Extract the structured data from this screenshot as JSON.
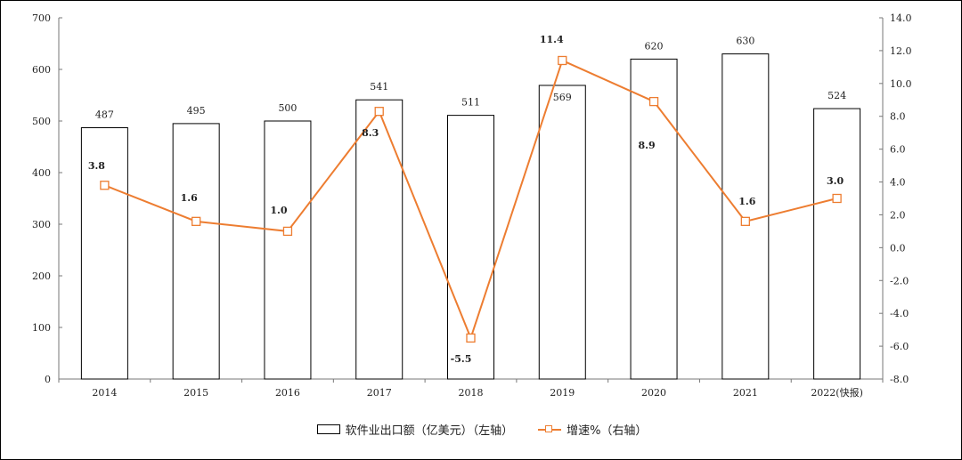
{
  "chart_data": {
    "type": "bar+line",
    "categories": [
      "2014",
      "2015",
      "2016",
      "2017",
      "2018",
      "2019",
      "2020",
      "2021",
      "2022(快报)"
    ],
    "series": [
      {
        "name": "软件业出口额（亿美元）（左轴）",
        "type": "bar",
        "axis": "left",
        "values": [
          487,
          495,
          500,
          541,
          511,
          569,
          620,
          630,
          524
        ],
        "color": "#FFFFFF",
        "edge": "#000000"
      },
      {
        "name": "增速%（右轴）",
        "type": "line",
        "axis": "right",
        "values": [
          3.8,
          1.6,
          1.0,
          8.3,
          -5.5,
          11.4,
          8.9,
          1.6,
          3.0
        ],
        "labels": [
          "3.8",
          "1.6",
          "1.0",
          "8.3",
          "-5.5",
          "11.4",
          "8.9",
          "1.6",
          "3.0"
        ],
        "color": "#ED7D31",
        "marker": "open-square"
      }
    ],
    "bar_labels": [
      "487",
      "495",
      "500",
      "541",
      "511",
      "569",
      "620",
      "630",
      "524"
    ],
    "y_left": {
      "range": [
        0,
        700
      ],
      "ticks": [
        "0",
        "100",
        "200",
        "300",
        "400",
        "500",
        "600",
        "700"
      ]
    },
    "y_right": {
      "range": [
        -8,
        14
      ],
      "ticks": [
        "-8.0",
        "-6.0",
        "-4.0",
        "-2.0",
        "0.0",
        "2.0",
        "4.0",
        "6.0",
        "8.0",
        "10.0",
        "12.0",
        "14.0"
      ]
    },
    "grid": false,
    "legend_position": "bottom"
  }
}
